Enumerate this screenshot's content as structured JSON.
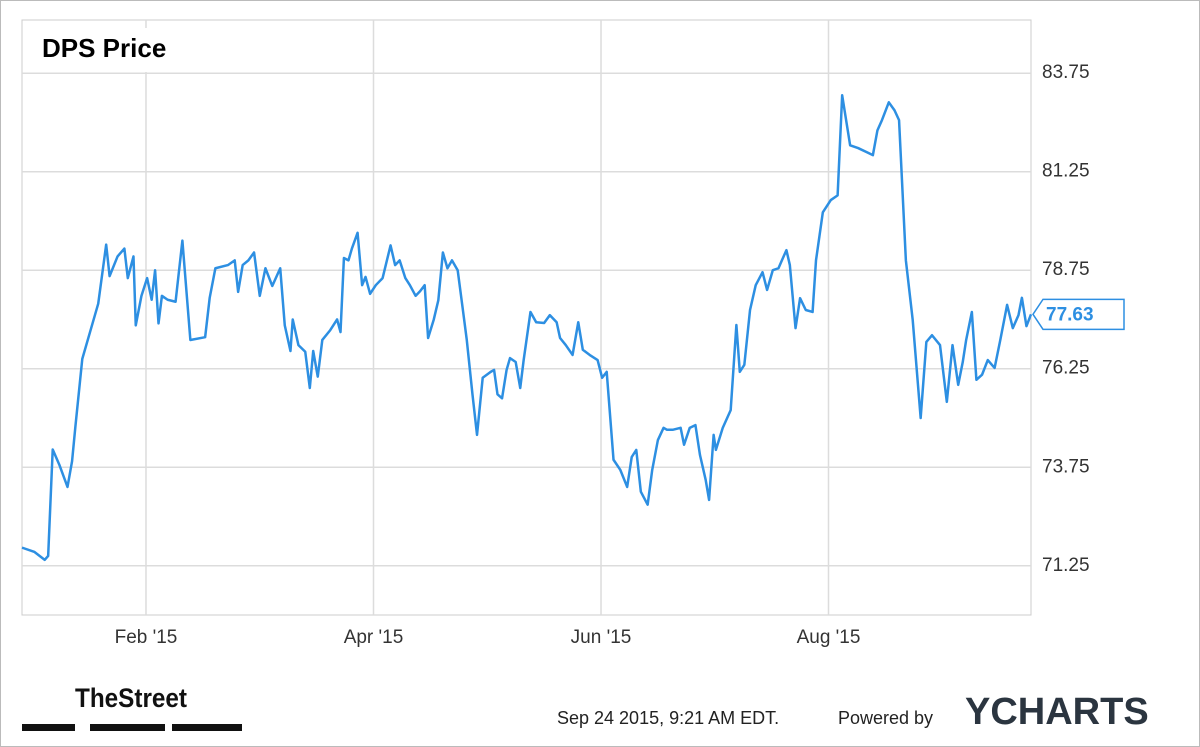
{
  "chart_data": {
    "type": "line",
    "title": "DPS Price",
    "x": [
      0.91,
      1.02,
      1.11,
      1.14,
      1.18,
      1.24,
      1.31,
      1.35,
      1.38,
      1.44,
      1.51,
      1.58,
      1.65,
      1.68,
      1.75,
      1.81,
      1.84,
      1.89,
      1.91,
      1.96,
      2.01,
      2.05,
      2.08,
      2.11,
      2.14,
      2.19,
      2.26,
      2.32,
      2.39,
      2.52,
      2.56,
      2.61,
      2.72,
      2.78,
      2.81,
      2.85,
      2.9,
      2.95,
      3.0,
      3.05,
      3.11,
      3.18,
      3.22,
      3.27,
      3.29,
      3.34,
      3.4,
      3.44,
      3.47,
      3.51,
      3.55,
      3.62,
      3.68,
      3.71,
      3.74,
      3.78,
      3.81,
      3.86,
      3.9,
      3.93,
      3.97,
      4.02,
      4.08,
      4.15,
      4.19,
      4.23,
      4.28,
      4.32,
      4.37,
      4.41,
      4.45,
      4.48,
      4.53,
      4.57,
      4.61,
      4.65,
      4.69,
      4.74,
      4.78,
      4.82,
      4.87,
      4.91,
      4.96,
      5.03,
      5.06,
      5.09,
      5.13,
      5.17,
      5.2,
      5.25,
      5.29,
      5.32,
      5.38,
      5.43,
      5.5,
      5.55,
      5.61,
      5.64,
      5.69,
      5.75,
      5.8,
      5.84,
      5.9,
      5.97,
      6.01,
      6.05,
      6.11,
      6.17,
      6.23,
      6.27,
      6.31,
      6.35,
      6.41,
      6.45,
      6.5,
      6.55,
      6.58,
      6.63,
      6.7,
      6.73,
      6.78,
      6.83,
      6.87,
      6.92,
      6.95,
      6.99,
      7.01,
      7.07,
      7.14,
      7.19,
      7.22,
      7.26,
      7.31,
      7.36,
      7.42,
      7.46,
      7.51,
      7.56,
      7.59,
      7.63,
      7.66,
      7.71,
      7.75,
      7.8,
      7.86,
      7.89,
      7.95,
      8.02,
      8.08,
      8.12,
      8.19,
      8.26,
      8.34,
      8.39,
      8.43,
      8.47,
      8.53,
      8.58,
      8.62,
      8.68,
      8.74,
      8.81,
      8.86,
      8.91,
      8.98,
      9.04,
      9.09,
      9.14,
      9.18,
      9.21,
      9.26,
      9.3,
      9.35,
      9.4,
      9.46,
      9.51,
      9.57,
      9.62,
      9.67,
      9.7,
      9.74,
      9.78
    ],
    "values": [
      71.71,
      71.6,
      71.4,
      71.5,
      74.2,
      73.8,
      73.25,
      73.9,
      74.8,
      76.5,
      77.2,
      77.9,
      79.4,
      78.6,
      79.1,
      79.3,
      78.55,
      79.1,
      77.35,
      78.1,
      78.55,
      78.0,
      78.75,
      77.4,
      78.1,
      78.0,
      77.95,
      79.5,
      76.98,
      77.05,
      78.05,
      78.8,
      78.88,
      79.0,
      78.2,
      78.88,
      79.0,
      79.2,
      78.1,
      78.8,
      78.35,
      78.8,
      77.35,
      76.7,
      77.5,
      76.85,
      76.68,
      75.76,
      76.7,
      76.05,
      76.98,
      77.23,
      77.5,
      77.18,
      79.06,
      79.0,
      79.3,
      79.7,
      78.37,
      78.58,
      78.15,
      78.37,
      78.55,
      79.38,
      78.88,
      79.0,
      78.55,
      78.37,
      78.1,
      78.22,
      78.37,
      77.03,
      77.5,
      77.99,
      79.2,
      78.8,
      79.0,
      78.75,
      77.87,
      76.98,
      75.6,
      74.57,
      76.02,
      76.17,
      76.22,
      75.6,
      75.5,
      76.22,
      76.52,
      76.42,
      75.76,
      76.47,
      77.69,
      77.43,
      77.41,
      77.61,
      77.43,
      77.03,
      76.85,
      76.6,
      77.43,
      76.73,
      76.6,
      76.47,
      76.02,
      76.17,
      73.94,
      73.68,
      73.25,
      74.01,
      74.19,
      73.13,
      72.8,
      73.68,
      74.44,
      74.75,
      74.7,
      74.7,
      74.75,
      74.32,
      74.75,
      74.82,
      74.06,
      73.43,
      72.92,
      74.57,
      74.19,
      74.75,
      75.2,
      77.36,
      76.17,
      76.35,
      77.74,
      78.37,
      78.7,
      78.25,
      78.75,
      78.8,
      79.0,
      79.26,
      78.88,
      77.28,
      78.04,
      77.74,
      77.69,
      79.0,
      80.22,
      80.53,
      80.65,
      83.19,
      81.92,
      81.85,
      81.74,
      81.67,
      82.3,
      82.56,
      83.01,
      82.81,
      82.56,
      79.0,
      77.49,
      75.0,
      76.93,
      77.1,
      76.85,
      75.41,
      76.85,
      75.84,
      76.42,
      76.98,
      77.69,
      75.97,
      76.1,
      76.47,
      76.27,
      76.98,
      77.87,
      77.28,
      77.61,
      78.05,
      77.33,
      77.63
    ],
    "color": "#2d8fe2",
    "xlim": [
      0.91,
      9.78
    ],
    "xticks": [
      {
        "value": 2,
        "label": "Feb '15"
      },
      {
        "value": 4,
        "label": "Apr '15"
      },
      {
        "value": 6,
        "label": "Jun '15"
      },
      {
        "value": 8,
        "label": "Aug '15"
      }
    ],
    "ylim": [
      70,
      85.1
    ],
    "yticks": [
      71.25,
      73.75,
      76.25,
      78.75,
      81.25,
      83.75
    ],
    "grid": true
  },
  "footer": {
    "brand": "TheStreet",
    "timestamp": "Sep 24 2015, 9:21 AM EDT.",
    "powered_by": "Powered by",
    "provider": "YCHARTS"
  }
}
